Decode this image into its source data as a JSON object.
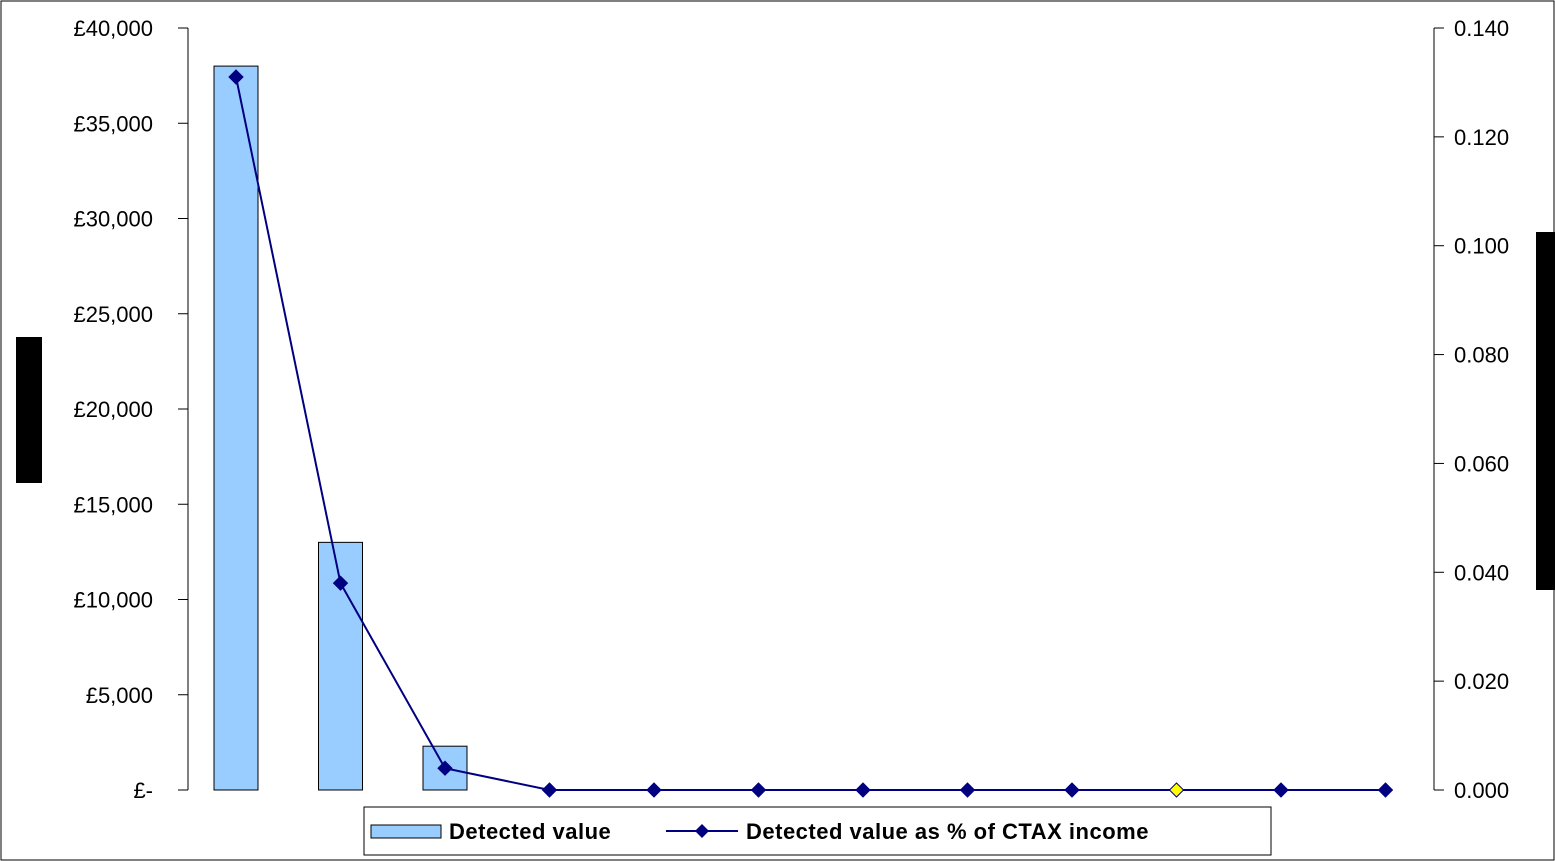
{
  "chart_data": {
    "type": "bar",
    "title": "",
    "xlabel": "",
    "ylabel": "",
    "categories": [
      "",
      "",
      "",
      "",
      "",
      "",
      "",
      "",
      "",
      "",
      "",
      ""
    ],
    "series": [
      {
        "name": "Detected value",
        "type": "bar",
        "axis": "left",
        "color": "#99ccff",
        "values": [
          38000,
          13000,
          2300,
          0,
          0,
          0,
          0,
          0,
          0,
          0,
          0,
          0
        ]
      },
      {
        "name": "Detected value as % of CTAX income",
        "type": "line",
        "axis": "right",
        "color": "#000080",
        "marker": "diamond",
        "highlight_point_index": 9,
        "highlight_color": "#ffff00",
        "values": [
          0.131,
          0.038,
          0.004,
          0,
          0,
          0,
          0,
          0,
          0,
          0,
          0,
          0
        ]
      }
    ],
    "ylim": [
      0,
      40000
    ],
    "y2lim": [
      0,
      0.14
    ],
    "y_ticks": [
      0,
      5000,
      10000,
      15000,
      20000,
      25000,
      30000,
      35000,
      40000
    ],
    "y_tick_labels": [
      "£-",
      "£5,000",
      "£10,000",
      "£15,000",
      "£20,000",
      "£25,000",
      "£30,000",
      "£35,000",
      "£40,000"
    ],
    "y2_ticks": [
      0,
      0.02,
      0.04,
      0.06,
      0.08,
      0.1,
      0.12,
      0.14
    ],
    "y2_tick_labels": [
      "0.000",
      "0.020",
      "0.040",
      "0.060",
      "0.080",
      "0.100",
      "0.120",
      "0.140"
    ],
    "grid": false,
    "legend_position": "bottom",
    "legend": {
      "bar_label": "Detected value",
      "line_label": "Detected value as % of CTAX income"
    }
  }
}
